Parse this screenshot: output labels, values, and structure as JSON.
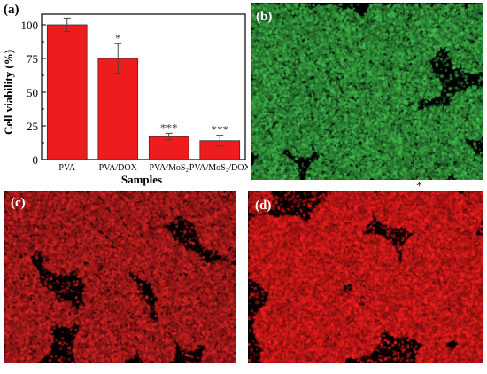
{
  "panels": {
    "a": "(a)",
    "b": "(b)",
    "c": "(c)",
    "d": "(d)"
  },
  "chart_data": {
    "type": "bar",
    "xlabel": "Samples",
    "ylabel": "Cell viability (%)",
    "ylim": [
      0,
      100
    ],
    "yticks": [
      0,
      25,
      50,
      75,
      100
    ],
    "categories": [
      "PVA",
      "PVA/DOX",
      "PVA/MoS₂",
      "PVA/MoS₂/DOX"
    ],
    "values": [
      100,
      75,
      17,
      14
    ],
    "errors": [
      5,
      11,
      2.5,
      4
    ],
    "significance": [
      "",
      "*",
      "***",
      "***"
    ],
    "bar_color": "#ee1c1c",
    "grid": false
  },
  "images": {
    "b_stain_color": "#3fb84a",
    "c_stain_color": "#d62323",
    "d_stain_color": "#f21f1f"
  },
  "marker": "*"
}
